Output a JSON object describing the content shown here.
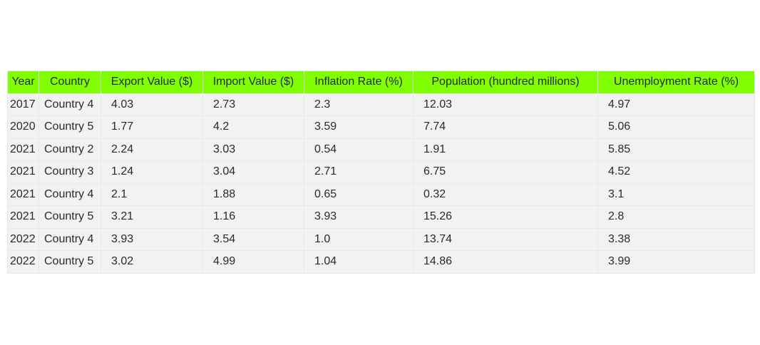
{
  "chart_data": {
    "type": "table",
    "columns": [
      "Year",
      "Country",
      "Export Value ($)",
      "Import Value ($)",
      "Inflation Rate (%)",
      "Population (hundred millions)",
      "Unemployment Rate (%)"
    ],
    "rows": [
      [
        "2017",
        "Country 4",
        "4.03",
        "2.73",
        "2.3",
        "12.03",
        "4.97"
      ],
      [
        "2020",
        "Country 5",
        "1.77",
        "4.2",
        "3.59",
        "7.74",
        "5.06"
      ],
      [
        "2021",
        "Country 2",
        "2.24",
        "3.03",
        "0.54",
        "1.91",
        "5.85"
      ],
      [
        "2021",
        "Country 3",
        "1.24",
        "3.04",
        "2.71",
        "6.75",
        "4.52"
      ],
      [
        "2021",
        "Country 4",
        "2.1",
        "1.88",
        "0.65",
        "0.32",
        "3.1"
      ],
      [
        "2021",
        "Country 5",
        "3.21",
        "1.16",
        "3.93",
        "15.26",
        "2.8"
      ],
      [
        "2022",
        "Country 4",
        "3.93",
        "3.54",
        "1.0",
        "13.74",
        "3.38"
      ],
      [
        "2022",
        "Country 5",
        "3.02",
        "4.99",
        "1.04",
        "14.86",
        "3.99"
      ]
    ],
    "header_color": "#7fff00",
    "cell_color": "#f2f2f2",
    "line_color": "#e6e6f5"
  }
}
